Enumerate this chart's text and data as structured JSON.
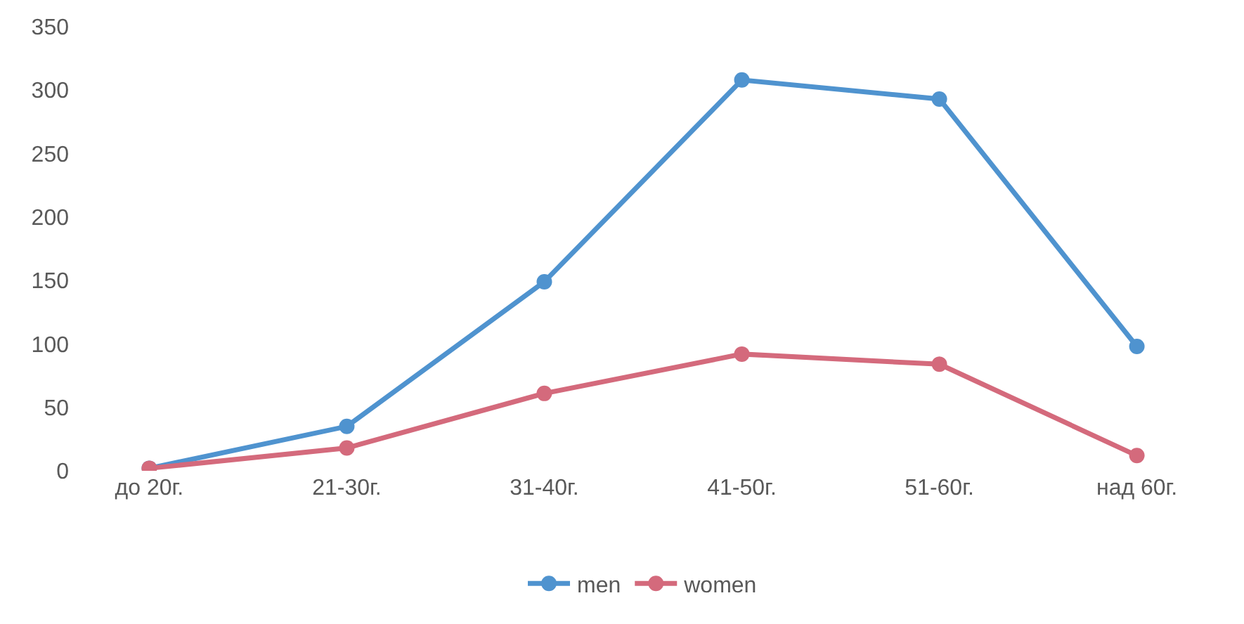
{
  "chart_data": {
    "type": "line",
    "categories": [
      "до 20г.",
      "21-30г.",
      "31-40г.",
      "41-50г.",
      "51-60г.",
      "над 60г."
    ],
    "series": [
      {
        "name": "men",
        "color": "#4f93cf",
        "values": [
          2,
          35,
          149,
          308,
          293,
          98
        ]
      },
      {
        "name": "women",
        "color": "#d46a7c",
        "values": [
          2,
          18,
          61,
          92,
          84,
          12
        ]
      }
    ],
    "ylim": [
      0,
      350
    ],
    "yticks": [
      0,
      50,
      100,
      150,
      200,
      250,
      300,
      350
    ],
    "legend": "bottom",
    "marker": "circle",
    "line_style": "solid"
  }
}
